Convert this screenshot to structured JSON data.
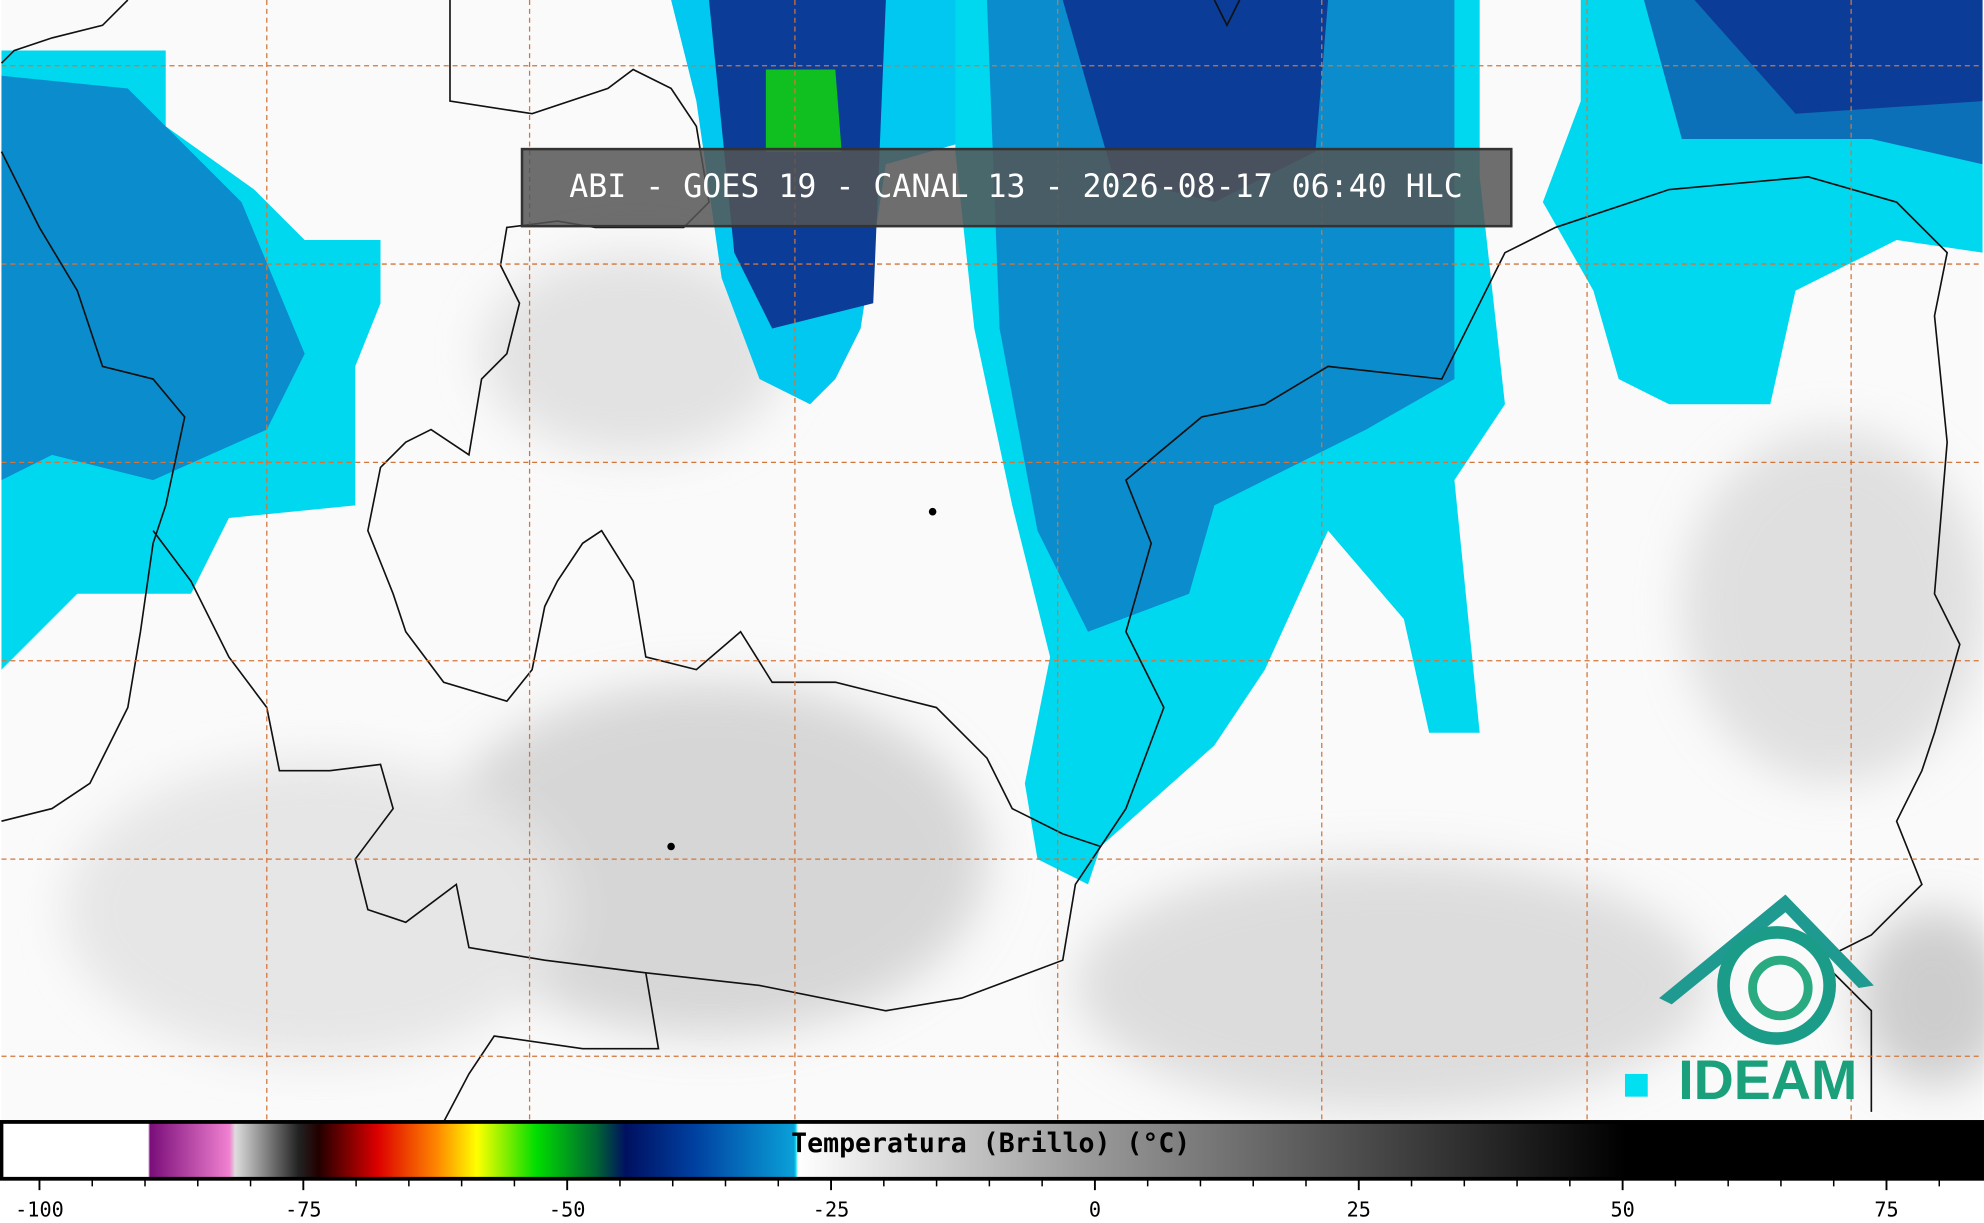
{
  "title": "ABI - GOES 19 - CANAL 13 - 2026-08-17 06:40 HLC",
  "logo": {
    "text": "IDEAM"
  },
  "colorbar": {
    "label": "Temperatura (Brillo) (°C)",
    "xlim": [
      -103.6,
      84.1
    ],
    "xticks": [
      -100,
      -75,
      -50,
      -25,
      0,
      25,
      50,
      75
    ],
    "minor_ticks": [
      -95,
      -90,
      -85,
      -80,
      -70,
      -65,
      -60,
      -55,
      -45,
      -40,
      -35,
      -30,
      -20,
      -15,
      -10,
      -5,
      5,
      10,
      15,
      20,
      30,
      35,
      40,
      45,
      55,
      60,
      65,
      70,
      80
    ]
  }
}
